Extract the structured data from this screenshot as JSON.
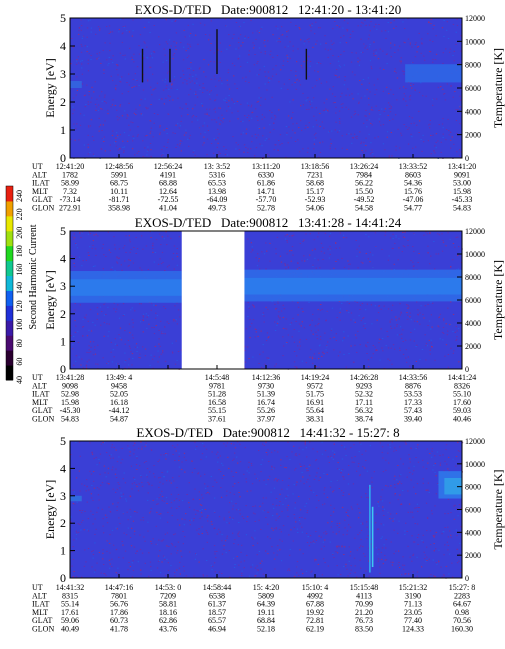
{
  "colorbar": {
    "label": "Second Harmonic Current",
    "ticks": [
      "40",
      "60",
      "80",
      "100",
      "120",
      "140",
      "160",
      "180",
      "200",
      "220",
      "240"
    ],
    "colors": [
      "#000000",
      "#2a0030",
      "#4a0a70",
      "#3a1aa8",
      "#2030d8",
      "#1060f0",
      "#10b8d8",
      "#10c890",
      "#20d820",
      "#a0e010",
      "#e8e800",
      "#f0a000",
      "#e82010"
    ]
  },
  "chart_data": [
    {
      "type": "heatmap",
      "title": "EXOS-D/TED   Date:900812   12:41:20 - 13:41:20",
      "ylabel": "Energy [eV]",
      "y2label": "Temperature [K]",
      "ylim": [
        0,
        5
      ],
      "yticks": [
        "0",
        "1",
        "2",
        "3",
        "4",
        "5"
      ],
      "y2lim": [
        0,
        12000
      ],
      "y2ticks": [
        "0",
        "2000",
        "4000",
        "6000",
        "8000",
        "10000",
        "12000"
      ],
      "background": "#3a3fd6",
      "features": [
        {
          "kind": "band",
          "x0": 0.855,
          "x1": 1.0,
          "y0": 2.7,
          "y1": 3.35,
          "color": "#2f66e6"
        },
        {
          "kind": "band",
          "x0": 0.0,
          "x1": 0.03,
          "y0": 2.5,
          "y1": 2.75,
          "color": "#3366e0"
        },
        {
          "kind": "line",
          "x": 0.185,
          "y0": 2.7,
          "y1": 3.9
        },
        {
          "kind": "line",
          "x": 0.255,
          "y0": 2.7,
          "y1": 3.9
        },
        {
          "kind": "line",
          "x": 0.375,
          "y0": 3.0,
          "y1": 4.6
        },
        {
          "kind": "line",
          "x": 0.603,
          "y0": 2.8,
          "y1": 3.9
        }
      ],
      "noise_seed": 7,
      "table": {
        "labels": [
          "UT",
          "ALT",
          "ILAT",
          "MLT",
          "GLAT",
          "GLON"
        ],
        "columns": [
          [
            "12:41:20",
            "1782",
            "58.99",
            "7.32",
            "-73.14",
            "272.91"
          ],
          [
            "12:48:56",
            "5991",
            "68.75",
            "10.11",
            "-81.71",
            "358.98"
          ],
          [
            "12:56:24",
            "4191",
            "68.88",
            "12.64",
            "-72.55",
            "41.04"
          ],
          [
            "13: 3:52",
            "5316",
            "65.53",
            "13.98",
            "-64.09",
            "49.73"
          ],
          [
            "13:11:20",
            "6330",
            "61.86",
            "14.71",
            "-57.70",
            "52.78"
          ],
          [
            "13:18:56",
            "7231",
            "58.68",
            "15.17",
            "-52.93",
            "54.06"
          ],
          [
            "13:26:24",
            "7984",
            "56.22",
            "15.50",
            "-49.52",
            "54.58"
          ],
          [
            "13:33:52",
            "8603",
            "54.36",
            "15.76",
            "-47.06",
            "54.77"
          ],
          [
            "13:41:20",
            "9091",
            "53.00",
            "15.98",
            "-45.33",
            "54.83"
          ]
        ]
      }
    },
    {
      "type": "heatmap",
      "title": "EXOS-D/TED   Date:900812   13:41:28 - 14:41:24",
      "ylabel": "Energy [eV]",
      "y2label": "Temperature [K]",
      "ylim": [
        0,
        5
      ],
      "yticks": [
        "0",
        "1",
        "2",
        "3",
        "4",
        "5"
      ],
      "y2lim": [
        0,
        12000
      ],
      "y2ticks": [
        "0",
        "2000",
        "4000",
        "6000",
        "8000",
        "10000",
        "12000"
      ],
      "background": "#3a3fd6",
      "features": [
        {
          "kind": "band",
          "x0": 0.0,
          "x1": 0.285,
          "y0": 2.4,
          "y1": 3.55,
          "color": "#2f6ae8"
        },
        {
          "kind": "band",
          "x0": 0.0,
          "x1": 0.285,
          "y0": 2.65,
          "y1": 3.25,
          "color": "#2c7cec"
        },
        {
          "kind": "band",
          "x0": 0.445,
          "x1": 1.0,
          "y0": 2.45,
          "y1": 3.6,
          "color": "#2f6ae8"
        },
        {
          "kind": "band",
          "x0": 0.445,
          "x1": 1.0,
          "y0": 2.7,
          "y1": 3.3,
          "color": "#2c7cec"
        },
        {
          "kind": "gap",
          "x0": 0.285,
          "x1": 0.445,
          "y0": 0.0,
          "y1": 5.0,
          "color": "#ffffff"
        }
      ],
      "noise_seed": 19,
      "table": {
        "labels": [
          "UT",
          "ALT",
          "ILAT",
          "MLT",
          "GLAT",
          "GLON"
        ],
        "columns": [
          [
            "13:41:28",
            "9098",
            "52.98",
            "15.98",
            "-45.30",
            "54.83"
          ],
          [
            "13:49: 4",
            "9458",
            "52.05",
            "16.18",
            "-44.12",
            "54.87"
          ],
          [
            "",
            "",
            "",
            "",
            "",
            ""
          ],
          [
            "14:5:48",
            "9781",
            "51.28",
            "16.58",
            "55.15",
            "37.61"
          ],
          [
            "14:12:36",
            "9730",
            "51.39",
            "16.74",
            "55.26",
            "37.97"
          ],
          [
            "14:19:24",
            "9572",
            "51.75",
            "16.91",
            "55.64",
            "38.31"
          ],
          [
            "14:26:28",
            "9293",
            "52.32",
            "17.11",
            "56.32",
            "38.74"
          ],
          [
            "14:33:56",
            "8876",
            "53.53",
            "17.33",
            "57.43",
            "39.40"
          ],
          [
            "14:41:24",
            "8326",
            "55.10",
            "17.60",
            "59.03",
            "40.46"
          ]
        ]
      }
    },
    {
      "type": "heatmap",
      "title": "EXOS-D/TED   Date:900812   14:41:32 - 15:27: 8",
      "ylabel": "Energy [eV]",
      "y2label": "Temperature [K]",
      "ylim": [
        0,
        5
      ],
      "yticks": [
        "0",
        "1",
        "2",
        "3",
        "4",
        "5"
      ],
      "y2lim": [
        0,
        12000
      ],
      "y2ticks": [
        "0",
        "2000",
        "4000",
        "6000",
        "8000",
        "10000",
        "12000"
      ],
      "background": "#3a3fd6",
      "features": [
        {
          "kind": "band",
          "x0": 0.94,
          "x1": 1.0,
          "y0": 2.9,
          "y1": 3.9,
          "color": "#2f78ea"
        },
        {
          "kind": "band",
          "x0": 0.955,
          "x1": 1.0,
          "y0": 3.05,
          "y1": 3.65,
          "color": "#31a0e8"
        },
        {
          "kind": "band",
          "x0": 0.0,
          "x1": 0.03,
          "y0": 2.8,
          "y1": 3.0,
          "color": "#3070e0"
        },
        {
          "kind": "line",
          "x": 0.765,
          "y0": 0.2,
          "y1": 3.4,
          "color": "#2fa8ee"
        },
        {
          "kind": "line",
          "x": 0.772,
          "y0": 0.4,
          "y1": 2.6,
          "color": "#3fc8f0"
        }
      ],
      "noise_seed": 31,
      "table": {
        "labels": [
          "UT",
          "ALT",
          "ILAT",
          "MLT",
          "GLAT",
          "GLON"
        ],
        "columns": [
          [
            "14:41:32",
            "8315",
            "55.14",
            "17.61",
            "59.06",
            "40.49"
          ],
          [
            "14:47:16",
            "7801",
            "56.76",
            "17.86",
            "60.73",
            "41.78"
          ],
          [
            "14:53: 0",
            "7209",
            "58.81",
            "18.16",
            "62.86",
            "43.76"
          ],
          [
            "14:58:44",
            "6538",
            "61.37",
            "18.57",
            "65.57",
            "46.94"
          ],
          [
            "15: 4:20",
            "5809",
            "64.39",
            "19.11",
            "68.84",
            "52.18"
          ],
          [
            "15:10: 4",
            "4992",
            "67.88",
            "19.92",
            "72.81",
            "62.19"
          ],
          [
            "15:15:48",
            "4113",
            "70.99",
            "21.20",
            "76.73",
            "83.50"
          ],
          [
            "15:21:32",
            "3190",
            "71.13",
            "23.05",
            "77.40",
            "124.33"
          ],
          [
            "15:27: 8",
            "2283",
            "64.67",
            "0.98",
            "70.56",
            "160.30"
          ]
        ]
      }
    }
  ]
}
